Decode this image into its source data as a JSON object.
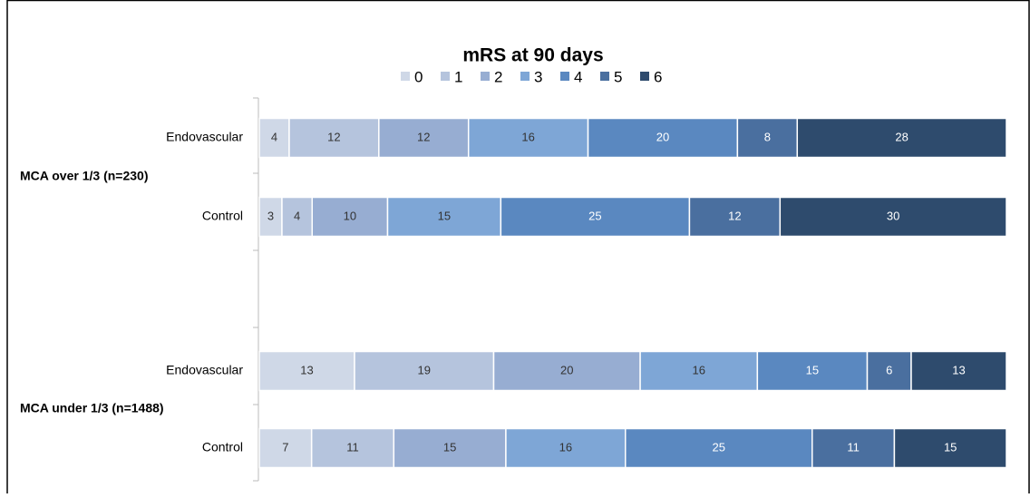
{
  "chart_data": {
    "type": "stacked-bar-horizontal",
    "title": "mRS at 90 days",
    "categories": [
      "Endovascular",
      "Control",
      "Endovascular",
      "Control"
    ],
    "groups": [
      {
        "label": "MCA over 1/3 (n=230)",
        "rows": [
          0,
          1
        ]
      },
      {
        "label": "MCA under 1/3 (n=1488)",
        "rows": [
          2,
          3
        ]
      }
    ],
    "series": [
      {
        "name": "0",
        "color": "#cfd8e7",
        "values": [
          4,
          3,
          13,
          7
        ]
      },
      {
        "name": "1",
        "color": "#b5c4dd",
        "values": [
          12,
          4,
          19,
          11
        ]
      },
      {
        "name": "2",
        "color": "#97add2",
        "values": [
          12,
          10,
          20,
          15
        ]
      },
      {
        "name": "3",
        "color": "#7ea6d6",
        "values": [
          16,
          15,
          16,
          16
        ]
      },
      {
        "name": "4",
        "color": "#5a88c0",
        "values": [
          20,
          25,
          15,
          25
        ]
      },
      {
        "name": "5",
        "color": "#4a6f9f",
        "values": [
          8,
          12,
          6,
          11
        ]
      },
      {
        "name": "6",
        "color": "#2e4b6d",
        "values": [
          28,
          30,
          13,
          15
        ]
      }
    ]
  }
}
